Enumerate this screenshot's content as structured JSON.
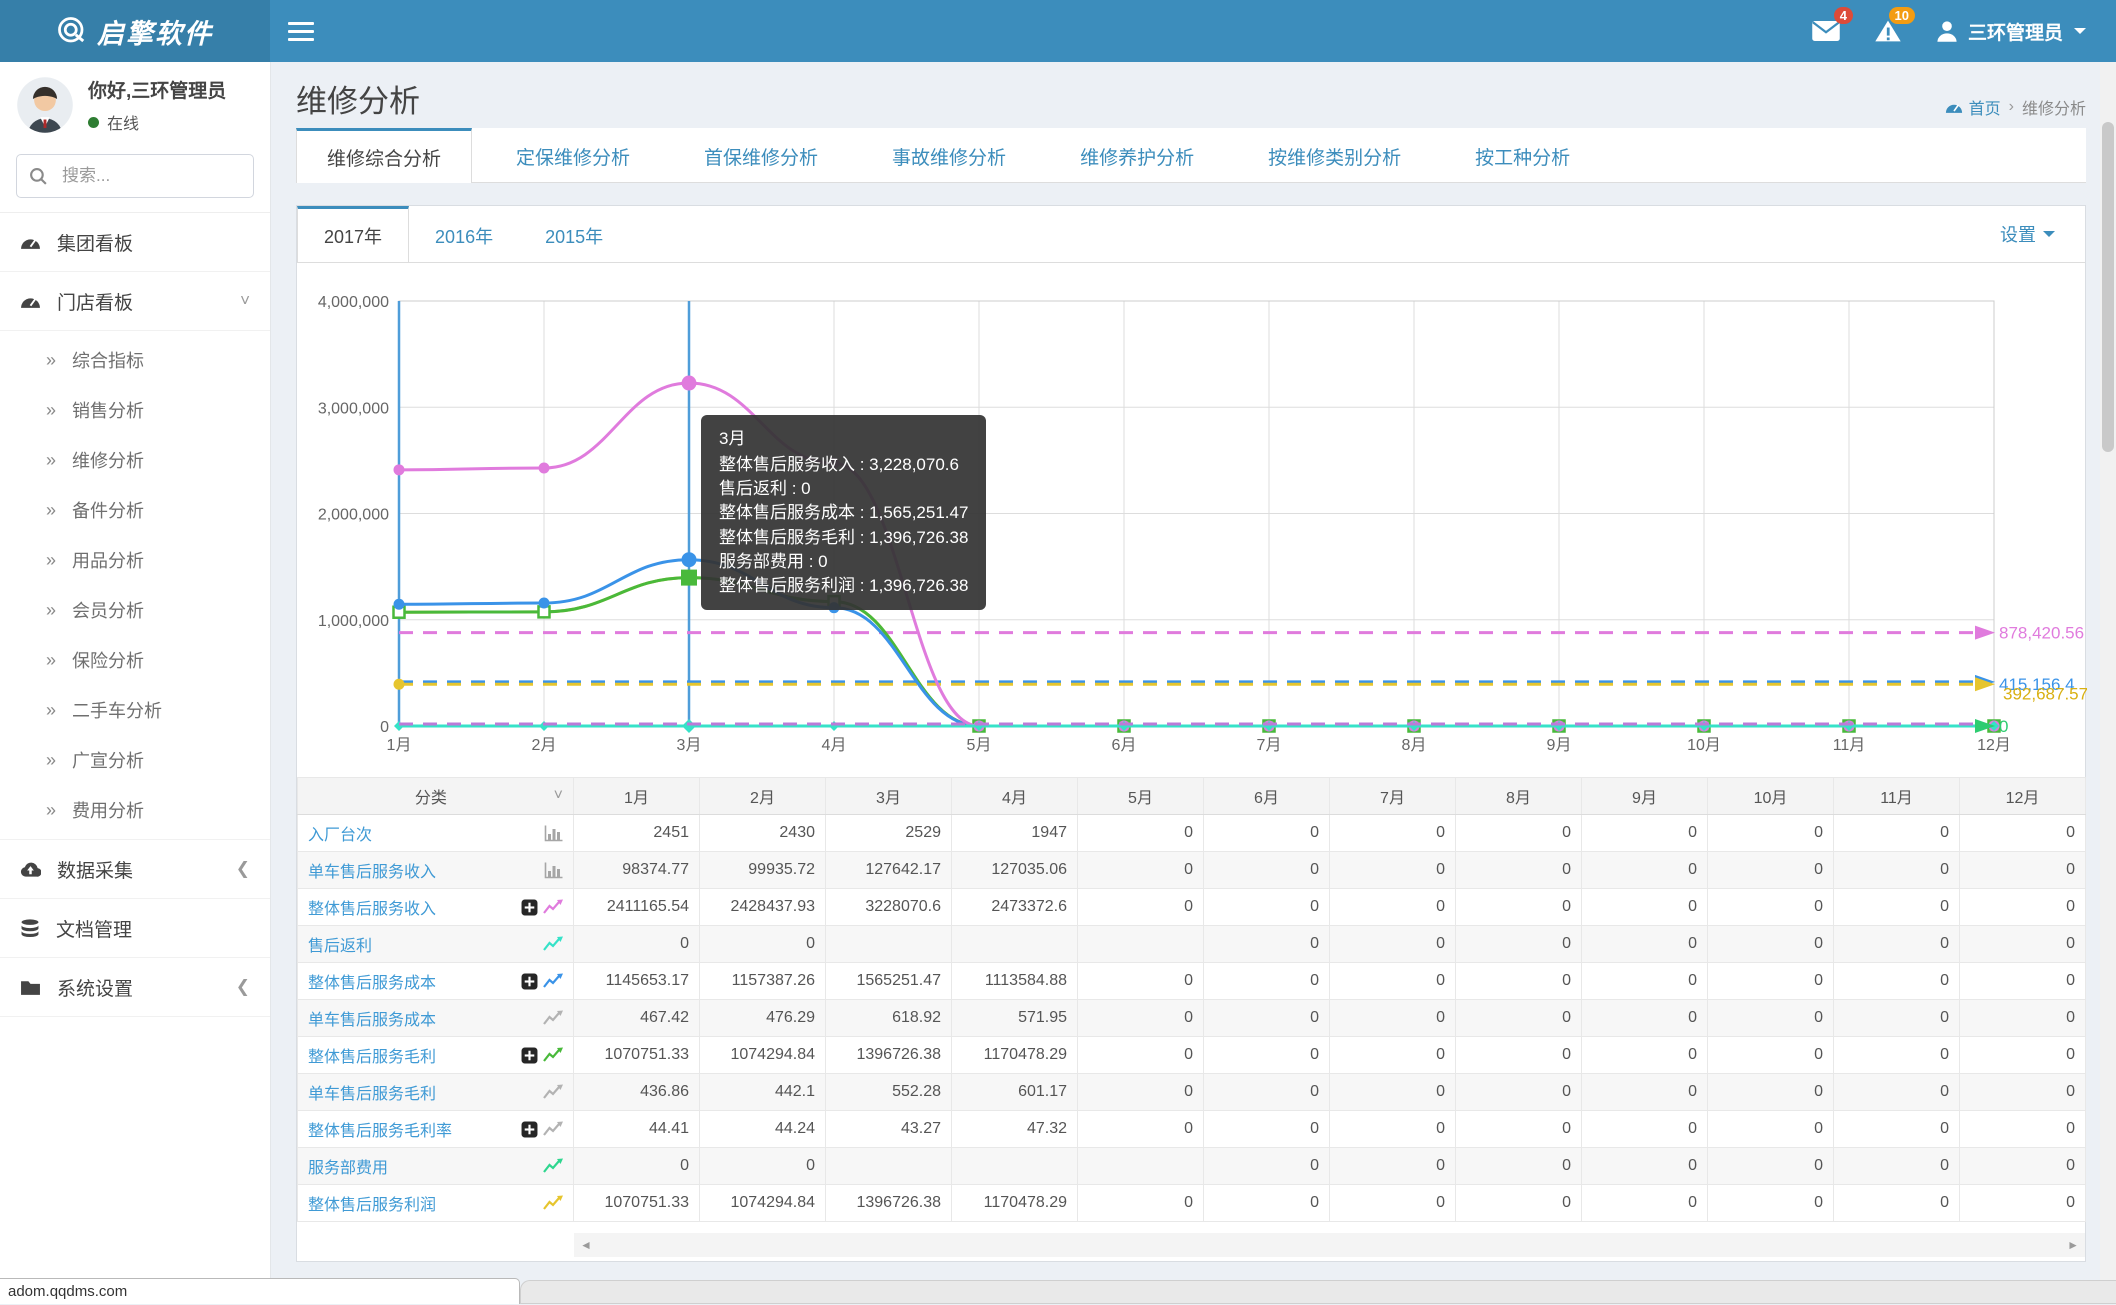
{
  "navbar": {
    "logo_text": "启擎软件",
    "messages_badge": "4",
    "alerts_badge": "10",
    "user_name": "三环管理员"
  },
  "sidebar": {
    "greeting": "你好,三环管理员",
    "status": "在线",
    "search_placeholder": "搜索...",
    "sections": [
      {
        "label": "集团看板",
        "icon": "gauge-icon",
        "chevron": ""
      },
      {
        "label": "门店看板",
        "icon": "gauge-icon",
        "chevron": "down",
        "children": [
          "综合指标",
          "销售分析",
          "维修分析",
          "备件分析",
          "用品分析",
          "会员分析",
          "保险分析",
          "二手车分析",
          "广宣分析",
          "费用分析"
        ]
      },
      {
        "label": "数据采集",
        "icon": "cloud-upload-icon",
        "chevron": "left"
      },
      {
        "label": "文档管理",
        "icon": "database-icon",
        "chevron": ""
      },
      {
        "label": "系统设置",
        "icon": "folder-icon",
        "chevron": "left"
      }
    ]
  },
  "header": {
    "title": "维修分析",
    "breadcrumb": {
      "home": "首页",
      "current": "维修分析"
    }
  },
  "page_tabs": {
    "active_index": 0,
    "items": [
      "维修综合分析",
      "定保维修分析",
      "首保维修分析",
      "事故维修分析",
      "维修养护分析",
      "按维修类别分析",
      "按工种分析"
    ]
  },
  "panel": {
    "year_tabs": [
      "2017年",
      "2016年",
      "2015年"
    ],
    "active_year_index": 0,
    "settings_label": "设置"
  },
  "chart_data": {
    "type": "line",
    "x_categories": [
      "1月",
      "2月",
      "3月",
      "4月",
      "5月",
      "6月",
      "7月",
      "8月",
      "9月",
      "10月",
      "11月",
      "12月"
    ],
    "ylim": [
      0,
      4000000
    ],
    "ytick_labels": [
      "0",
      "1,000,000",
      "2,000,000",
      "3,000,000",
      "4,000,000"
    ],
    "grid": true,
    "axis_color": "#4f9dd9",
    "series": [
      {
        "name": "整体售后服务收入",
        "color": "#e07bdd",
        "marker": "circle",
        "values": [
          2411165.54,
          2428437.93,
          3228070.6,
          2473372.6,
          0,
          0,
          0,
          0,
          0,
          0,
          0,
          0
        ],
        "average": 878420.56,
        "average_label": "878,420.56"
      },
      {
        "name": "售后返利",
        "color": "#36e2c8",
        "marker": "diamond",
        "values": [
          0,
          0,
          0,
          0,
          0,
          0,
          0,
          0,
          0,
          0,
          0,
          0
        ],
        "average": 0,
        "average_label": "0"
      },
      {
        "name": "整体售后服务成本",
        "color": "#3a93e8",
        "marker": "circle",
        "values": [
          1145653.17,
          1157387.26,
          1565251.47,
          1113584.88,
          0,
          0,
          0,
          0,
          0,
          0,
          0,
          0
        ],
        "average": 415156.4,
        "average_label": "415,156.4"
      },
      {
        "name": "整体售后服务毛利",
        "color": "#49b93b",
        "marker": "square",
        "values": [
          1070751.33,
          1074294.84,
          1396726.38,
          1170478.29,
          0,
          0,
          0,
          0,
          0,
          0,
          0,
          0
        ],
        "average": 392687.57,
        "average_label": "392,687.57"
      },
      {
        "name": "服务部费用",
        "color": "#2fd68f",
        "marker": "none",
        "values": [
          0,
          0,
          0,
          0,
          0,
          0,
          0,
          0,
          0,
          0,
          0,
          0
        ],
        "average": 0,
        "average_label": "0"
      },
      {
        "name": "整体售后服务利润",
        "color": "#e6c52e",
        "marker": "none",
        "values": [
          1070751.33,
          1074294.84,
          1396726.38,
          1170478.29,
          0,
          0,
          0,
          0,
          0,
          0,
          0,
          0
        ],
        "average": 392687.57,
        "average_label": "392,687.57"
      }
    ],
    "hover": {
      "index": 2,
      "label": "3月"
    },
    "tooltip": {
      "title": "3月",
      "lines": [
        "整体售后服务收入 : 3,228,070.6",
        "售后返利 : 0",
        "整体售后服务成本 : 1,565,251.47",
        "整体售后服务毛利 : 1,396,726.38",
        "服务部费用 : 0",
        "整体售后服务利润 : 1,396,726.38"
      ]
    }
  },
  "table": {
    "category_header": "分类",
    "months": [
      "1月",
      "2月",
      "3月",
      "4月",
      "5月",
      "6月",
      "7月",
      "8月",
      "9月",
      "10月",
      "11月",
      "12月"
    ],
    "rows": [
      {
        "label": "入厂台次",
        "icons": [
          {
            "name": "bar-chart-icon",
            "color": "#a6a6a6"
          }
        ],
        "values": [
          "2451",
          "2430",
          "2529",
          "1947",
          "0",
          "0",
          "0",
          "0",
          "0",
          "0",
          "0",
          "0"
        ]
      },
      {
        "label": "单车售后服务收入",
        "icons": [
          {
            "name": "bar-chart-icon",
            "color": "#a6a6a6"
          }
        ],
        "values": [
          "98374.77",
          "99935.72",
          "127642.17",
          "127035.06",
          "0",
          "0",
          "0",
          "0",
          "0",
          "0",
          "0",
          "0"
        ]
      },
      {
        "label": "整体售后服务收入",
        "icons": [
          {
            "name": "plus-square-icon",
            "color": "#262626"
          },
          {
            "name": "line-chart-icon",
            "color": "#e07bdd"
          }
        ],
        "values": [
          "2411165.54",
          "2428437.93",
          "3228070.6",
          "2473372.6",
          "0",
          "0",
          "0",
          "0",
          "0",
          "0",
          "0",
          "0"
        ]
      },
      {
        "label": "售后返利",
        "icons": [
          {
            "name": "line-chart-icon",
            "color": "#36e2c8"
          }
        ],
        "values": [
          "0",
          "0",
          "",
          "",
          "",
          "0",
          "0",
          "0",
          "0",
          "0",
          "0",
          "0"
        ]
      },
      {
        "label": "整体售后服务成本",
        "icons": [
          {
            "name": "plus-square-icon",
            "color": "#262626"
          },
          {
            "name": "line-chart-icon",
            "color": "#3a93e8"
          }
        ],
        "values": [
          "1145653.17",
          "1157387.26",
          "1565251.47",
          "1113584.88",
          "0",
          "0",
          "0",
          "0",
          "0",
          "0",
          "0",
          "0"
        ]
      },
      {
        "label": "单车售后服务成本",
        "icons": [
          {
            "name": "line-chart-icon",
            "color": "#b3b3b3"
          }
        ],
        "values": [
          "467.42",
          "476.29",
          "618.92",
          "571.95",
          "0",
          "0",
          "0",
          "0",
          "0",
          "0",
          "0",
          "0"
        ]
      },
      {
        "label": "整体售后服务毛利",
        "icons": [
          {
            "name": "plus-square-icon",
            "color": "#262626"
          },
          {
            "name": "line-chart-icon",
            "color": "#49b93b"
          }
        ],
        "values": [
          "1070751.33",
          "1074294.84",
          "1396726.38",
          "1170478.29",
          "0",
          "0",
          "0",
          "0",
          "0",
          "0",
          "0",
          "0"
        ]
      },
      {
        "label": "单车售后服务毛利",
        "icons": [
          {
            "name": "line-chart-icon",
            "color": "#b3b3b3"
          }
        ],
        "values": [
          "436.86",
          "442.1",
          "552.28",
          "601.17",
          "0",
          "0",
          "0",
          "0",
          "0",
          "0",
          "0",
          "0"
        ]
      },
      {
        "label": "整体售后服务毛利率",
        "icons": [
          {
            "name": "plus-square-icon",
            "color": "#262626"
          },
          {
            "name": "line-chart-icon",
            "color": "#b3b3b3"
          }
        ],
        "values": [
          "44.41",
          "44.24",
          "43.27",
          "47.32",
          "0",
          "0",
          "0",
          "0",
          "0",
          "0",
          "0",
          "0"
        ]
      },
      {
        "label": "服务部费用",
        "icons": [
          {
            "name": "line-chart-icon",
            "color": "#2fd68f"
          }
        ],
        "values": [
          "0",
          "0",
          "",
          "",
          "",
          "0",
          "0",
          "0",
          "0",
          "0",
          "0",
          "0"
        ]
      },
      {
        "label": "整体售后服务利润",
        "icons": [
          {
            "name": "line-chart-icon",
            "color": "#e6c52e"
          }
        ],
        "values": [
          "1070751.33",
          "1074294.84",
          "1396726.38",
          "1170478.29",
          "0",
          "0",
          "0",
          "0",
          "0",
          "0",
          "0",
          "0"
        ]
      }
    ]
  },
  "statusbar": {
    "url": "adom.qqdms.com"
  }
}
